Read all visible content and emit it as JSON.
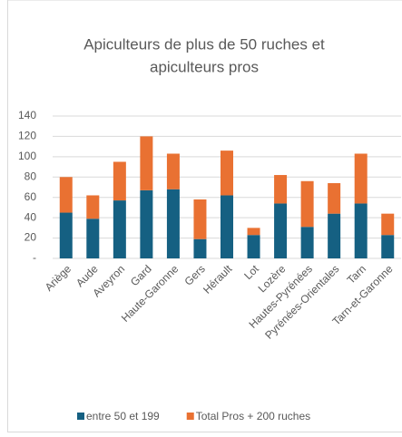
{
  "chart_data": {
    "type": "stacked-bar",
    "title": [
      "Apiculteurs de plus de 50 ruches et",
      "apiculteurs pros"
    ],
    "categories": [
      "Ariège",
      "Aude",
      "Aveyron",
      "Gard",
      "Haute-Garonne",
      "Gers",
      "Hérault",
      "Lot",
      "Lozère",
      "Hautes-Pyrénées",
      "Pyrénées-Orientales",
      "Tarn",
      "Tarn-et-Garonne"
    ],
    "series": [
      {
        "name": "entre 50 et 199",
        "color": "#156082",
        "values": [
          45,
          39,
          57,
          67,
          68,
          19,
          62,
          23,
          54,
          31,
          44,
          54,
          23
        ]
      },
      {
        "name": "Total Pros + 200 ruches",
        "color": "#e97132",
        "values": [
          35,
          23,
          38,
          53,
          35,
          39,
          44,
          7,
          28,
          45,
          30,
          49,
          21
        ]
      }
    ],
    "ylim": [
      0,
      140
    ],
    "yticks": [
      {
        "value": 0,
        "label": "-"
      },
      20,
      40,
      60,
      80,
      100,
      120,
      140
    ],
    "grid": true,
    "legend": "bottom"
  }
}
